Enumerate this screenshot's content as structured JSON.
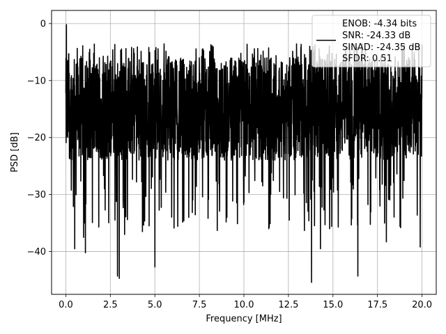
{
  "chart_data": {
    "type": "line",
    "title": "",
    "xlabel": "Frequency [MHz]",
    "ylabel": "PSD [dB]",
    "xlim": [
      -0.8,
      20.8
    ],
    "ylim": [
      -47.5,
      2.3
    ],
    "xticks": [
      0.0,
      2.5,
      5.0,
      7.5,
      10.0,
      12.5,
      15.0,
      17.5,
      20.0
    ],
    "xtick_labels": [
      "0.0",
      "2.5",
      "5.0",
      "7.5",
      "10.0",
      "12.5",
      "15.0",
      "17.5",
      "20.0"
    ],
    "yticks": [
      0,
      -10,
      -20,
      -30,
      -40
    ],
    "ytick_labels": [
      "0",
      "−10",
      "−20",
      "−30",
      "−40"
    ],
    "grid": true,
    "legend_position": "top-right",
    "legend_text": [
      "ENOB: -4.34 bits",
      "SNR: -24.33 dB",
      "SINAD: -24.35 dB",
      "SFDR: 0.51"
    ],
    "series": [
      {
        "color": "#000000",
        "x_range": [
          0.0,
          20.0
        ],
        "band_min_approx": -24,
        "band_max_approx": -6,
        "peaks": [
          {
            "x": 0.03,
            "y": -0.2
          },
          {
            "x": 13.7,
            "y": -4.0
          }
        ],
        "dips": [
          {
            "x": 0.5,
            "y": -39.5
          },
          {
            "x": 1.1,
            "y": -40.2
          },
          {
            "x": 2.9,
            "y": -44.3
          },
          {
            "x": 3.0,
            "y": -44.7
          },
          {
            "x": 5.0,
            "y": -42.7
          },
          {
            "x": 13.8,
            "y": -45.4
          },
          {
            "x": 16.4,
            "y": -44.3
          },
          {
            "x": 14.3,
            "y": -39.5
          },
          {
            "x": 19.9,
            "y": -39.2
          },
          {
            "x": 18.0,
            "y": -38.3
          },
          {
            "x": 1.0,
            "y": -37.5
          },
          {
            "x": 3.3,
            "y": -37.0
          },
          {
            "x": 4.3,
            "y": -36.5
          },
          {
            "x": 6.9,
            "y": -34.0
          },
          {
            "x": 8.5,
            "y": -36.3
          },
          {
            "x": 9.0,
            "y": -34.8
          },
          {
            "x": 11.4,
            "y": -36.0
          },
          {
            "x": 13.4,
            "y": -36.3
          },
          {
            "x": 15.3,
            "y": -35.7
          },
          {
            "x": 18.8,
            "y": -35.8
          },
          {
            "x": 17.9,
            "y": -35.0
          }
        ]
      }
    ]
  }
}
